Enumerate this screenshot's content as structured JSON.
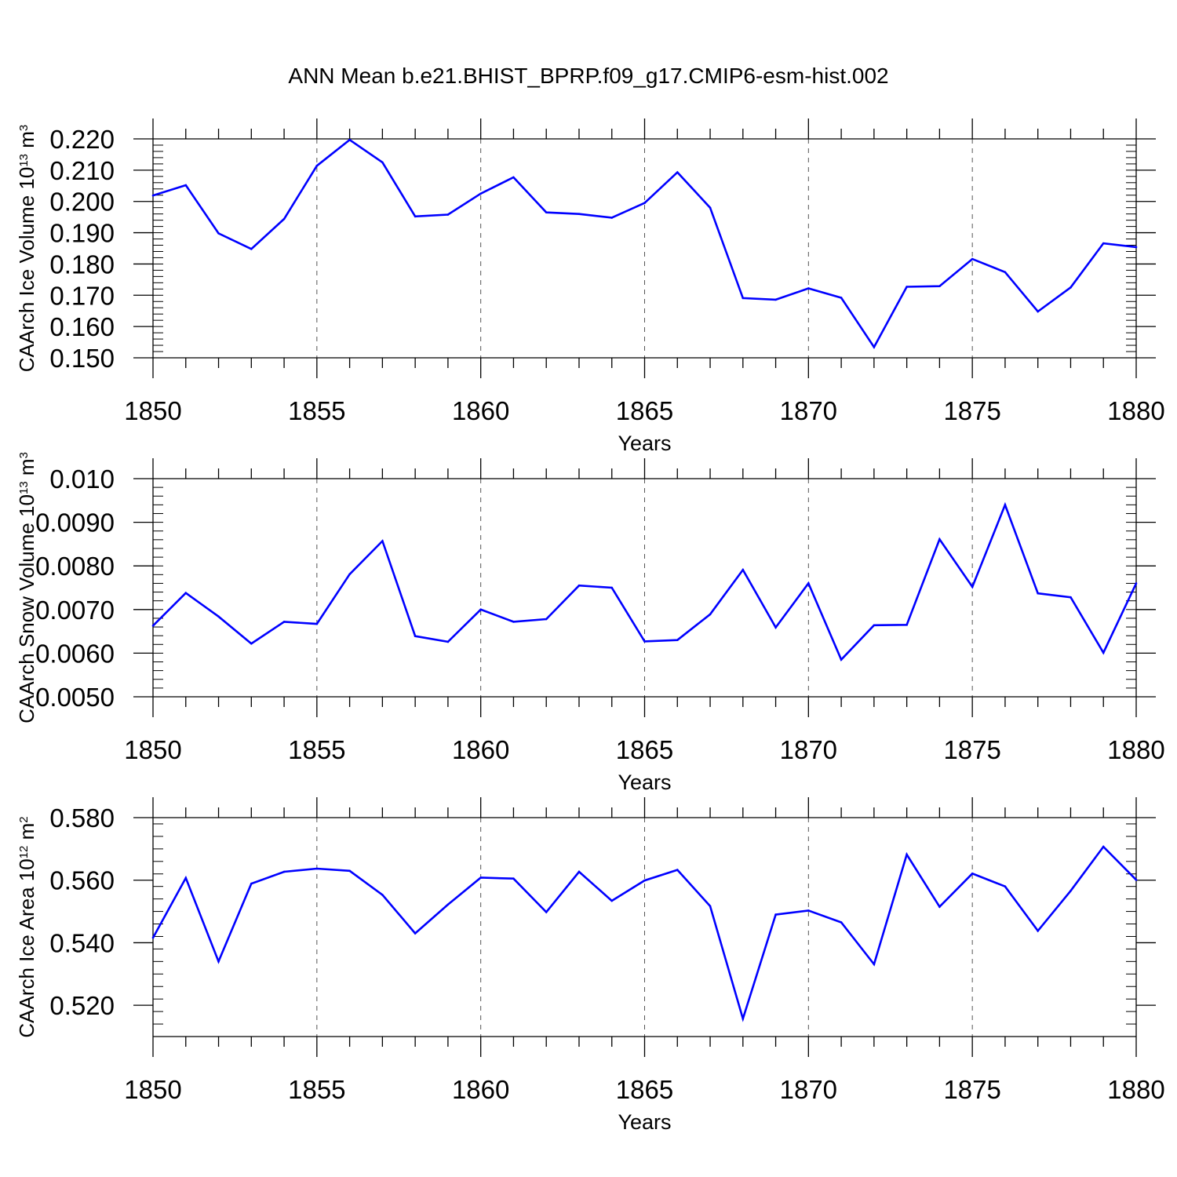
{
  "title": "ANN Mean b.e21.BHIST_BPRP.f09_g17.CMIP6-esm-hist.002",
  "line_color": "#0000ff",
  "chart_data": [
    {
      "type": "line",
      "ylabel_text": "CAArch Ice Volume 10",
      "ylabel_exp": "13",
      "ylabel_unit": " m",
      "ylabel_unit_exp": "3",
      "xlabel": "Years",
      "xlim": [
        1850,
        1880
      ],
      "ylim": [
        0.15,
        0.22
      ],
      "x_ticks": [
        "1850",
        "1855",
        "1860",
        "1865",
        "1870",
        "1875",
        "1880"
      ],
      "y_ticks": [
        "0.150",
        "0.160",
        "0.170",
        "0.180",
        "0.190",
        "0.200",
        "0.210",
        "0.220"
      ],
      "y_tick_values": [
        0.15,
        0.16,
        0.17,
        0.18,
        0.19,
        0.2,
        0.21,
        0.22
      ],
      "grid": "dashed vertical at major x ticks",
      "x": [
        1850,
        1851,
        1852,
        1853,
        1854,
        1855,
        1856,
        1857,
        1858,
        1859,
        1860,
        1861,
        1862,
        1863,
        1864,
        1865,
        1866,
        1867,
        1868,
        1869,
        1870,
        1871,
        1872,
        1873,
        1874,
        1875,
        1876,
        1877,
        1878,
        1879,
        1880
      ],
      "values": [
        0.2019,
        0.2052,
        0.1898,
        0.1848,
        0.1944,
        0.2114,
        0.2197,
        0.2125,
        0.1952,
        0.1958,
        0.2025,
        0.2077,
        0.1965,
        0.196,
        0.1948,
        0.1995,
        0.2093,
        0.198,
        0.1691,
        0.1686,
        0.1722,
        0.1692,
        0.1534,
        0.1727,
        0.1729,
        0.1816,
        0.1774,
        0.1648,
        0.1725,
        0.1866,
        0.1854
      ]
    },
    {
      "type": "line",
      "ylabel_text": "CAArch Snow Volume 10",
      "ylabel_exp": "13",
      "ylabel_unit": " m",
      "ylabel_unit_exp": "3",
      "xlabel": "Years",
      "xlim": [
        1850,
        1880
      ],
      "ylim": [
        0.005,
        0.01
      ],
      "x_ticks": [
        "1850",
        "1855",
        "1860",
        "1865",
        "1870",
        "1875",
        "1880"
      ],
      "y_ticks": [
        "0.0050",
        "0.0060",
        "0.0070",
        "0.0080",
        "0.0090",
        "0.010"
      ],
      "y_tick_values": [
        0.005,
        0.006,
        0.007,
        0.008,
        0.009,
        0.01
      ],
      "grid": "dashed vertical at major x ticks",
      "x": [
        1850,
        1851,
        1852,
        1853,
        1854,
        1855,
        1856,
        1857,
        1858,
        1859,
        1860,
        1861,
        1862,
        1863,
        1864,
        1865,
        1866,
        1867,
        1868,
        1869,
        1870,
        1871,
        1872,
        1873,
        1874,
        1875,
        1876,
        1877,
        1878,
        1879,
        1880
      ],
      "values": [
        0.00663,
        0.00738,
        0.00684,
        0.00622,
        0.00672,
        0.00667,
        0.00781,
        0.00857,
        0.00639,
        0.00626,
        0.007,
        0.00672,
        0.00678,
        0.00755,
        0.0075,
        0.00627,
        0.0063,
        0.00689,
        0.00791,
        0.00659,
        0.0076,
        0.00585,
        0.00664,
        0.00665,
        0.00861,
        0.00752,
        0.0094,
        0.00737,
        0.00728,
        0.00601,
        0.0076
      ]
    },
    {
      "type": "line",
      "ylabel_text": "CAArch Ice Area 10",
      "ylabel_exp": "12",
      "ylabel_unit": " m",
      "ylabel_unit_exp": "2",
      "xlabel": "Years",
      "xlim": [
        1850,
        1880
      ],
      "ylim": [
        0.51,
        0.58
      ],
      "x_ticks": [
        "1850",
        "1855",
        "1860",
        "1865",
        "1870",
        "1875",
        "1880"
      ],
      "y_ticks": [
        "0.520",
        "0.540",
        "0.560",
        "0.580"
      ],
      "y_tick_values": [
        0.52,
        0.54,
        0.56,
        0.58
      ],
      "grid": "dashed vertical at major x ticks",
      "x": [
        1850,
        1851,
        1852,
        1853,
        1854,
        1855,
        1856,
        1857,
        1858,
        1859,
        1860,
        1861,
        1862,
        1863,
        1864,
        1865,
        1866,
        1867,
        1868,
        1869,
        1870,
        1871,
        1872,
        1873,
        1874,
        1875,
        1876,
        1877,
        1878,
        1879,
        1880
      ],
      "values": [
        0.5416,
        0.5607,
        0.534,
        0.5589,
        0.5627,
        0.5637,
        0.563,
        0.5553,
        0.543,
        0.5522,
        0.5608,
        0.5605,
        0.5498,
        0.5627,
        0.5534,
        0.5599,
        0.5633,
        0.5517,
        0.5157,
        0.549,
        0.5503,
        0.5465,
        0.5331,
        0.5682,
        0.5515,
        0.5621,
        0.558,
        0.5438,
        0.5566,
        0.5707,
        0.5601
      ]
    }
  ]
}
